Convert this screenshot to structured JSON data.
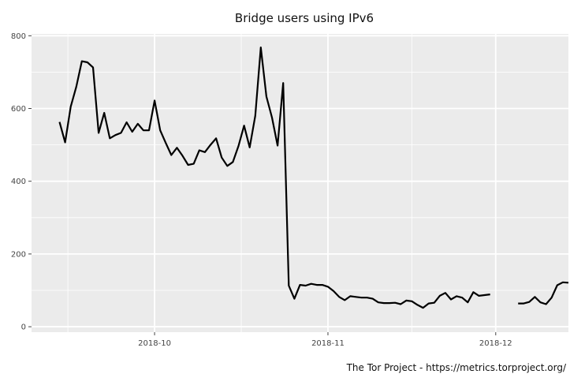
{
  "chart_data": {
    "type": "line",
    "title": "Bridge users using IPv6",
    "caption": "The Tor Project - https://metrics.torproject.org/",
    "xlabel": "",
    "ylabel": "",
    "x_start": "2018-09-14",
    "x_range": [
      "2018-09-09",
      "2018-12-14"
    ],
    "ylim": [
      -15,
      805
    ],
    "y_ticks": [
      0,
      200,
      400,
      600,
      800
    ],
    "x_ticks": [
      {
        "date": "2018-10-01",
        "label": "2018-10"
      },
      {
        "date": "2018-11-01",
        "label": "2018-11"
      },
      {
        "date": "2018-12-01",
        "label": "2018-12"
      }
    ],
    "grid": true,
    "colors": {
      "panel": "#ebebeb",
      "grid": "#ffffff",
      "line": "#000000"
    },
    "series": [
      {
        "name": "",
        "values": [
          563,
          507,
          605,
          660,
          730,
          727,
          713,
          533,
          588,
          518,
          527,
          533,
          562,
          536,
          558,
          540,
          540,
          622,
          540,
          505,
          472,
          492,
          470,
          445,
          448,
          485,
          480,
          500,
          518,
          465,
          442,
          453,
          497,
          553,
          493,
          580,
          768,
          633,
          575,
          498,
          670,
          113,
          77,
          115,
          113,
          118,
          115,
          115,
          110,
          98,
          82,
          73,
          84,
          82,
          80,
          80,
          77,
          67,
          65,
          65,
          66,
          62,
          72,
          70,
          60,
          52,
          64,
          66,
          85,
          93,
          75,
          84,
          80,
          67,
          95,
          85,
          87,
          89,
          null,
          null,
          null,
          null,
          64,
          64,
          68,
          82,
          67,
          62,
          80,
          114,
          122,
          121
        ]
      }
    ]
  }
}
